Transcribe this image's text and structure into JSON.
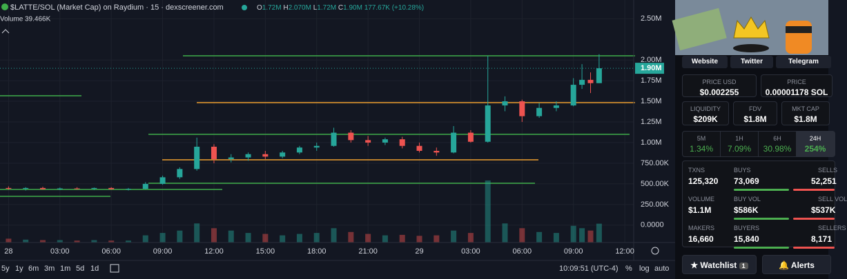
{
  "header": {
    "title": "$LATTE/SOL (Market Cap) on Raydium · 15 · dexscreener.com",
    "open_label": "O",
    "open": "1.72M",
    "high_label": "H",
    "high": "2.070M",
    "low_label": "L",
    "low": "1.72M",
    "close_label": "C",
    "close": "1.90M",
    "change": "177.67K (+10.28%)",
    "volume_label": "Volume",
    "volume": "39.466K"
  },
  "chart_data": {
    "type": "candlestick",
    "up_color": "#26a69a",
    "down_color": "#ef5350",
    "grid": true,
    "xlim": [
      -0.5,
      36.4
    ],
    "ylim": [
      -210000,
      2727000
    ],
    "volume_lim": [
      0,
      130000
    ],
    "xticks": [
      {
        "value": 0,
        "label": "28"
      },
      {
        "value": 3,
        "label": "03:00"
      },
      {
        "value": 6,
        "label": "06:00"
      },
      {
        "value": 9,
        "label": "09:00"
      },
      {
        "value": 12,
        "label": "12:00"
      },
      {
        "value": 15,
        "label": "15:00"
      },
      {
        "value": 18,
        "label": "18:00"
      },
      {
        "value": 21,
        "label": "21:00"
      },
      {
        "value": 24,
        "label": "29"
      },
      {
        "value": 27,
        "label": "03:00"
      },
      {
        "value": 30,
        "label": "06:00"
      },
      {
        "value": 33,
        "label": "09:00"
      },
      {
        "value": 36,
        "label": "12:00"
      }
    ],
    "yticks": [
      {
        "value": 2500000,
        "label": "2.50M"
      },
      {
        "value": 2000000,
        "label": "2.00M"
      },
      {
        "value": 1750000,
        "label": "1.75M"
      },
      {
        "value": 1500000,
        "label": "1.50M"
      },
      {
        "value": 1250000,
        "label": "1.25M"
      },
      {
        "value": 1000000,
        "label": "1.00M"
      },
      {
        "value": 750000,
        "label": "750.00K"
      },
      {
        "value": 500000,
        "label": "500.00K"
      },
      {
        "value": 250000,
        "label": "250.00K"
      },
      {
        "value": 0,
        "label": "0.0000"
      }
    ],
    "last_price": {
      "value": 1900000,
      "label": "1.90M"
    },
    "x": [
      0,
      1,
      2,
      3,
      4,
      5,
      6,
      7,
      8,
      9,
      10,
      11,
      12,
      13,
      14,
      15,
      16,
      17,
      18,
      19,
      20,
      21,
      22,
      23,
      24,
      25,
      26,
      27,
      28,
      29,
      30,
      31,
      32,
      33,
      33.5,
      34,
      34.5
    ],
    "open": [
      450000,
      440000,
      450000,
      435000,
      445000,
      440000,
      450000,
      435000,
      440000,
      500000,
      580000,
      680000,
      950000,
      800000,
      820000,
      860000,
      830000,
      880000,
      940000,
      960000,
      1120000,
      1030000,
      1000000,
      1040000,
      960000,
      900000,
      880000,
      1120000,
      1010000,
      1450000,
      1500000,
      1320000,
      1420000,
      1450000,
      1700000,
      1760000,
      1720000
    ],
    "high": [
      470000,
      460000,
      465000,
      455000,
      460000,
      455000,
      460000,
      450000,
      520000,
      600000,
      700000,
      1060000,
      980000,
      860000,
      880000,
      900000,
      900000,
      960000,
      1000000,
      1180000,
      1150000,
      1080000,
      1060000,
      1070000,
      1000000,
      940000,
      1200000,
      1150000,
      2050000,
      1560000,
      1520000,
      1480000,
      1500000,
      1780000,
      1950000,
      1850000,
      2070000
    ],
    "low": [
      430000,
      420000,
      430000,
      425000,
      430000,
      425000,
      430000,
      420000,
      435000,
      490000,
      560000,
      660000,
      750000,
      760000,
      780000,
      800000,
      810000,
      860000,
      900000,
      950000,
      1000000,
      960000,
      970000,
      930000,
      880000,
      840000,
      870000,
      1000000,
      1000000,
      1380000,
      1250000,
      1300000,
      1380000,
      1440000,
      1650000,
      1600000,
      1720000
    ],
    "close": [
      440000,
      450000,
      435000,
      445000,
      440000,
      450000,
      435000,
      440000,
      500000,
      580000,
      680000,
      950000,
      800000,
      820000,
      860000,
      830000,
      880000,
      940000,
      960000,
      1120000,
      1030000,
      1000000,
      1040000,
      960000,
      900000,
      880000,
      1120000,
      1010000,
      1450000,
      1500000,
      1320000,
      1420000,
      1450000,
      1700000,
      1760000,
      1720000,
      1900000
    ],
    "volume": [
      8000,
      6000,
      5000,
      5000,
      4000,
      5000,
      4000,
      4000,
      15000,
      20000,
      25000,
      40000,
      30000,
      25000,
      20000,
      18000,
      15000,
      18000,
      20000,
      30000,
      22000,
      18000,
      15000,
      16000,
      14000,
      15000,
      25000,
      20000,
      130000,
      40000,
      30000,
      22000,
      20000,
      35000,
      30000,
      25000,
      39466
    ]
  },
  "footer": {
    "ranges": [
      "5y",
      "1y",
      "6m",
      "3m",
      "1m",
      "5d",
      "1d"
    ],
    "clock": "10:09:51 (UTC-4)",
    "percent": "%",
    "log": "log",
    "auto": "auto"
  },
  "panel": {
    "links": [
      "Website",
      "Twitter",
      "Telegram"
    ],
    "price_usd": {
      "label": "PRICE USD",
      "value": "$0.002255"
    },
    "price": {
      "label": "PRICE",
      "value": "0.00001178 SOL"
    },
    "liquidity": {
      "label": "LIQUIDITY",
      "value": "$209K"
    },
    "fdv": {
      "label": "FDV",
      "value": "$1.8M"
    },
    "mkt_cap": {
      "label": "MKT CAP",
      "value": "$1.8M"
    },
    "timeframes": [
      {
        "label": "5M",
        "value": "1.34%"
      },
      {
        "label": "1H",
        "value": "7.09%"
      },
      {
        "label": "6H",
        "value": "30.98%"
      },
      {
        "label": "24H",
        "value": "254%"
      }
    ],
    "stats": [
      [
        {
          "label": "TXNS",
          "value": "125,320"
        },
        {
          "label": "BUYS",
          "value": "73,069"
        },
        {
          "label": "SELLS",
          "value": "52,251"
        }
      ],
      [
        {
          "label": "VOLUME",
          "value": "$1.1M"
        },
        {
          "label": "BUY VOL",
          "value": "$586K"
        },
        {
          "label": "SELL VOL",
          "value": "$537K"
        }
      ],
      [
        {
          "label": "MAKERS",
          "value": "16,660"
        },
        {
          "label": "BUYERS",
          "value": "15,840"
        },
        {
          "label": "SELLERS",
          "value": "8,171"
        }
      ]
    ],
    "watchlist": "Watchlist",
    "watchlist_count": "1",
    "alerts": "Alerts"
  }
}
